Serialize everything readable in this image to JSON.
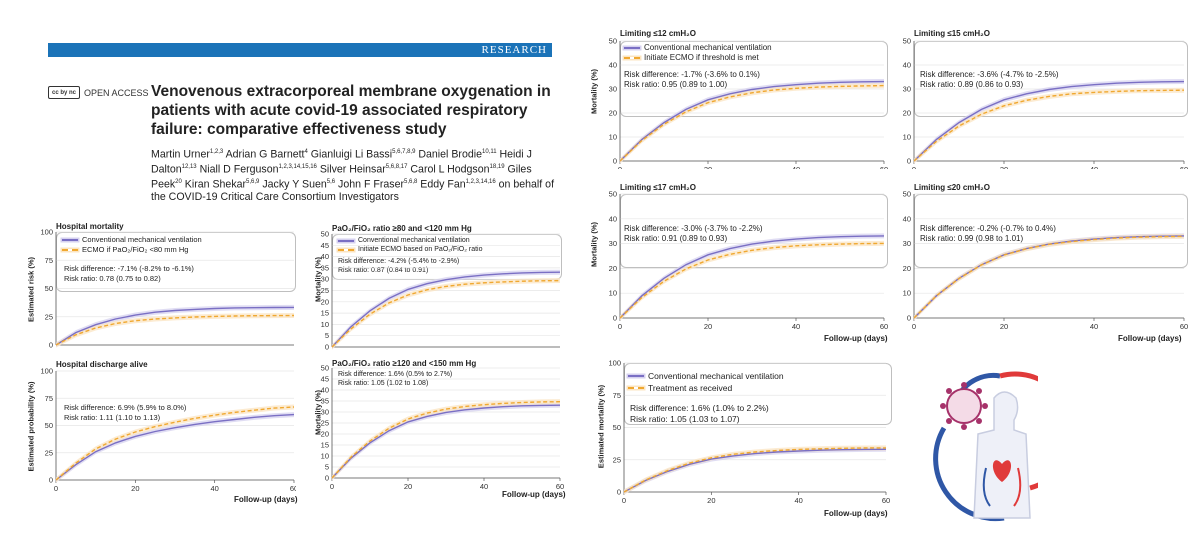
{
  "paper": {
    "section": "RESEARCH",
    "open_access": "OPEN ACCESS",
    "cc_badge": "cc by nc",
    "title": "Venovenous extracorporeal membrane oxygenation in patients with acute covid-19 associated respiratory failure: comparative effectiveness study",
    "authors": [
      {
        "name": "Martin Urner",
        "sup": "1,2,3"
      },
      {
        "name": "Adrian G Barnett",
        "sup": "4"
      },
      {
        "name": "Gianluigi Li Bassi",
        "sup": "5,6,7,8,9"
      },
      {
        "name": "Daniel Brodie",
        "sup": "10,11"
      },
      {
        "name": "Heidi J Dalton",
        "sup": "12,13"
      },
      {
        "name": "Niall D Ferguson",
        "sup": "1,2,3,14,15,16"
      },
      {
        "name": "Silver Heinsar",
        "sup": "5,6,8,17"
      },
      {
        "name": "Carol L Hodgson",
        "sup": "18,19"
      },
      {
        "name": "Giles Peek",
        "sup": "20"
      },
      {
        "name": "Kiran Shekar",
        "sup": "5,6,9"
      },
      {
        "name": "Jacky Y Suen",
        "sup": "5,6"
      },
      {
        "name": "John F Fraser",
        "sup": "5,6,8"
      },
      {
        "name": "Eddy Fan",
        "sup": "1,2,3,14,16"
      }
    ],
    "author_tail": "on behalf of the COVID-19 Critical Care Consortium Investigators"
  },
  "colors": {
    "conventional": "#7a6fc4",
    "conventional_band": "#d6d1ef",
    "ecmo": "#f0a830",
    "ecmo_band": "#fbe4c1",
    "frame": "#bfbfbf",
    "band": "#1b73b8"
  },
  "panels": {
    "hosp_mort": {
      "title": "Hospital mortality",
      "ylabel": "Estimated risk (%)",
      "legend": [
        "Conventional mechanical ventilation",
        "ECMO if PaO₂/FiO₂ <80 mm Hg"
      ],
      "stats": [
        "Risk difference: -7.1% (-8.2% to -6.1%)",
        "Risk ratio: 0.78 (0.75 to 0.82)"
      ],
      "chart_data": {
        "type": "line",
        "x": [
          0,
          5,
          10,
          15,
          20,
          25,
          30,
          35,
          40,
          45,
          50,
          55,
          60
        ],
        "ylim": [
          0,
          100
        ],
        "yticks": [
          0,
          25,
          50,
          75,
          100
        ],
        "xticks": [],
        "series": [
          {
            "name": "Conventional mechanical ventilation",
            "values": [
              0,
              11,
              18,
              23,
              26.5,
              29,
              30.5,
              31.5,
              32.3,
              32.8,
              33,
              33.2,
              33.3
            ]
          },
          {
            "name": "ECMO if PaO2/FiO2 <80 mm Hg",
            "values": [
              0,
              9,
              15,
              19,
              21.5,
              23,
              24,
              24.8,
              25.3,
              25.7,
              25.9,
              26,
              26.1
            ]
          }
        ]
      }
    },
    "hosp_disch": {
      "title": "Hospital discharge alive",
      "ylabel": "Estimated probability (%)",
      "xlabel": "Follow-up (days)",
      "stats": [
        "Risk difference: 6.9% (5.9% to 8.0%)",
        "Risk ratio: 1.11 (1.10 to 1.13)"
      ],
      "chart_data": {
        "type": "line",
        "x": [
          0,
          5,
          10,
          15,
          20,
          25,
          30,
          35,
          40,
          45,
          50,
          55,
          60
        ],
        "ylim": [
          0,
          100
        ],
        "yticks": [
          0,
          25,
          50,
          75,
          100
        ],
        "xticks": [
          0,
          20,
          40,
          60
        ],
        "series": [
          {
            "name": "Conventional mechanical ventilation",
            "values": [
              0,
              14,
              26,
              34,
              40,
              44.5,
              48,
              51,
              53.5,
              55.5,
              57.5,
              59,
              60
            ]
          },
          {
            "name": "ECMO",
            "values": [
              0,
              15.5,
              28.5,
              37.5,
              44,
              49,
              53,
              56.5,
              59.5,
              62,
              64,
              66,
              67
            ]
          }
        ]
      }
    },
    "pf80": {
      "title": "PaO₂/FiO₂ ratio ≥80 and <120 mm Hg",
      "ylabel": "Mortality (%)",
      "legend": [
        "Conventional mechanical ventilation",
        "Initiate ECMO based on PaO₂/FiO₂ ratio"
      ],
      "stats": [
        "Risk difference: -4.2% (-5.4% to -2.9%)",
        "Risk ratio: 0.87 (0.84 to 0.91)"
      ],
      "chart_data": {
        "type": "line",
        "x": [
          0,
          5,
          10,
          15,
          20,
          25,
          30,
          35,
          40,
          45,
          50,
          55,
          60
        ],
        "ylim": [
          0,
          50
        ],
        "yticks": [
          0,
          5,
          10,
          15,
          20,
          25,
          30,
          35,
          40,
          45,
          50
        ],
        "xticks": [],
        "series": [
          {
            "name": "Conventional mechanical ventilation",
            "values": [
              0,
              9,
              16,
              21.5,
              25.5,
              28,
              29.8,
              31,
              31.8,
              32.4,
              32.8,
              33,
              33.1
            ]
          },
          {
            "name": "Initiate ECMO based on PaO2/FiO2 ratio",
            "values": [
              0,
              8,
              14.5,
              19.5,
              23,
              25.3,
              26.8,
              27.8,
              28.4,
              28.8,
              29.1,
              29.3,
              29.4
            ]
          }
        ]
      }
    },
    "pf120": {
      "title": "PaO₂/FiO₂ ratio ≥120 and <150 mm Hg",
      "ylabel": "Mortality (%)",
      "xlabel": "Follow-up (days)",
      "stats": [
        "Risk difference: 1.6% (0.5% to 2.7%)",
        "Risk ratio: 1.05 (1.02 to 1.08)"
      ],
      "chart_data": {
        "type": "line",
        "x": [
          0,
          5,
          10,
          15,
          20,
          25,
          30,
          35,
          40,
          45,
          50,
          55,
          60
        ],
        "ylim": [
          0,
          50
        ],
        "yticks": [
          0,
          5,
          10,
          15,
          20,
          25,
          30,
          35,
          40,
          45,
          50
        ],
        "xticks": [
          0,
          20,
          40,
          60
        ],
        "series": [
          {
            "name": "Conventional mechanical ventilation",
            "values": [
              0,
              9,
              16,
              21.5,
              25.5,
              28,
              29.8,
              31,
              31.8,
              32.4,
              32.8,
              33,
              33.1
            ]
          },
          {
            "name": "Initiate ECMO based on PaO2/FiO2 ratio",
            "values": [
              0,
              9.5,
              16.8,
              22.6,
              26.8,
              29.5,
              31.3,
              32.5,
              33.3,
              33.9,
              34.3,
              34.6,
              34.7
            ]
          }
        ]
      }
    },
    "lim12": {
      "title": "Limiting ≤12 cmH₂O",
      "ylabel": "Mortality (%)",
      "legend": [
        "Conventional mechanical ventilation",
        "Initiate ECMO if threshold is met"
      ],
      "stats": [
        "Risk difference: -1.7% (-3.6% to 0.1%)",
        "Risk ratio: 0.95 (0.89 to 1.00)"
      ],
      "chart_data": {
        "type": "line",
        "x": [
          0,
          5,
          10,
          15,
          20,
          25,
          30,
          35,
          40,
          45,
          50,
          55,
          60
        ],
        "ylim": [
          0,
          50
        ],
        "yticks": [
          0,
          10,
          20,
          30,
          40,
          50
        ],
        "xticks": [
          0,
          20,
          40,
          60
        ],
        "series": [
          {
            "name": "Conventional mechanical ventilation",
            "values": [
              0,
              9,
              16,
              21.5,
              25.5,
              28,
              29.8,
              31,
              31.8,
              32.4,
              32.8,
              33,
              33.1
            ]
          },
          {
            "name": "Initiate ECMO if threshold is met",
            "values": [
              0,
              8.6,
              15.3,
              20.5,
              24.3,
              26.7,
              28.4,
              29.6,
              30.3,
              30.8,
              31.1,
              31.3,
              31.4
            ]
          }
        ]
      }
    },
    "lim15": {
      "title": "Limiting ≤15 cmH₂O",
      "stats": [
        "Risk difference: -3.6% (-4.7% to -2.5%)",
        "Risk ratio: 0.89 (0.86 to 0.93)"
      ],
      "chart_data": {
        "type": "line",
        "x": [
          0,
          5,
          10,
          15,
          20,
          25,
          30,
          35,
          40,
          45,
          50,
          55,
          60
        ],
        "ylim": [
          0,
          50
        ],
        "yticks": [
          0,
          10,
          20,
          30,
          40,
          50
        ],
        "xticks": [
          0,
          20,
          40,
          60
        ],
        "series": [
          {
            "name": "Conventional mechanical ventilation",
            "values": [
              0,
              9,
              16,
              21.5,
              25.5,
              28,
              29.8,
              31,
              31.8,
              32.4,
              32.8,
              33,
              33.1
            ]
          },
          {
            "name": "Initiate ECMO if threshold is met",
            "values": [
              0,
              8.2,
              14.6,
              19.5,
              23,
              25.3,
              26.9,
              28,
              28.6,
              29,
              29.3,
              29.4,
              29.5
            ]
          }
        ]
      }
    },
    "lim17": {
      "title": "Limiting ≤17 cmH₂O",
      "ylabel": "Mortality (%)",
      "stats": [
        "Risk difference: -3.0% (-3.7% to -2.2%)",
        "Risk ratio: 0.91 (0.89 to 0.93)"
      ],
      "chart_data": {
        "type": "line",
        "x": [
          0,
          5,
          10,
          15,
          20,
          25,
          30,
          35,
          40,
          45,
          50,
          55,
          60
        ],
        "ylim": [
          0,
          50
        ],
        "yticks": [
          0,
          10,
          20,
          30,
          40,
          50
        ],
        "xticks": [
          0,
          20,
          40,
          60
        ],
        "series": [
          {
            "name": "Conventional mechanical ventilation",
            "values": [
              0,
              9,
              16,
              21.5,
              25.5,
              28,
              29.8,
              31,
              31.8,
              32.4,
              32.8,
              33,
              33.1
            ]
          },
          {
            "name": "Initiate ECMO if threshold is met",
            "values": [
              0,
              8.3,
              14.8,
              19.8,
              23.4,
              25.7,
              27.3,
              28.4,
              29.1,
              29.5,
              29.8,
              30,
              30.1
            ]
          }
        ]
      }
    },
    "lim20": {
      "title": "Limiting ≤20 cmH₂O",
      "xlabel": "Follow-up (days)",
      "stats": [
        "Risk difference: -0.2% (-0.7% to 0.4%)",
        "Risk ratio: 0.99 (0.98 to 1.01)"
      ],
      "chart_data": {
        "type": "line",
        "x": [
          0,
          5,
          10,
          15,
          20,
          25,
          30,
          35,
          40,
          45,
          50,
          55,
          60
        ],
        "ylim": [
          0,
          50
        ],
        "yticks": [
          0,
          10,
          20,
          30,
          40,
          50
        ],
        "xticks": [
          0,
          20,
          40,
          60
        ],
        "series": [
          {
            "name": "Conventional mechanical ventilation",
            "values": [
              0,
              9,
              16,
              21.5,
              25.5,
              28,
              29.8,
              31,
              31.8,
              32.4,
              32.8,
              33,
              33.1
            ]
          },
          {
            "name": "Initiate ECMO if threshold is met",
            "values": [
              0,
              9,
              15.9,
              21.4,
              25.4,
              27.9,
              29.7,
              30.8,
              31.6,
              32.2,
              32.6,
              32.8,
              32.9
            ]
          }
        ]
      }
    },
    "treat": {
      "ylabel": "Estimated mortality (%)",
      "xlabel": "Follow-up (days)",
      "legend": [
        "Conventional mechanical ventilation",
        "Treatment as received"
      ],
      "stats": [
        "Risk difference: 1.6% (1.0% to 2.2%)",
        "Risk ratio: 1.05 (1.03 to 1.07)"
      ],
      "chart_data": {
        "type": "line",
        "x": [
          0,
          5,
          10,
          15,
          20,
          25,
          30,
          35,
          40,
          45,
          50,
          55,
          60
        ],
        "ylim": [
          0,
          100
        ],
        "yticks": [
          0,
          25,
          50,
          75,
          100
        ],
        "xticks": [
          0,
          20,
          40,
          60
        ],
        "series": [
          {
            "name": "Conventional mechanical ventilation",
            "values": [
              0,
              9,
              16,
              21.5,
              25.5,
              28,
              29.8,
              31,
              31.8,
              32.4,
              32.8,
              33,
              33.1
            ]
          },
          {
            "name": "Treatment as received",
            "values": [
              0,
              9.4,
              16.7,
              22.4,
              26.5,
              29.2,
              31,
              32.2,
              33,
              33.5,
              33.9,
              34.1,
              34.2
            ]
          }
        ]
      }
    }
  },
  "illustration": {
    "label": "ECMO illustration"
  }
}
